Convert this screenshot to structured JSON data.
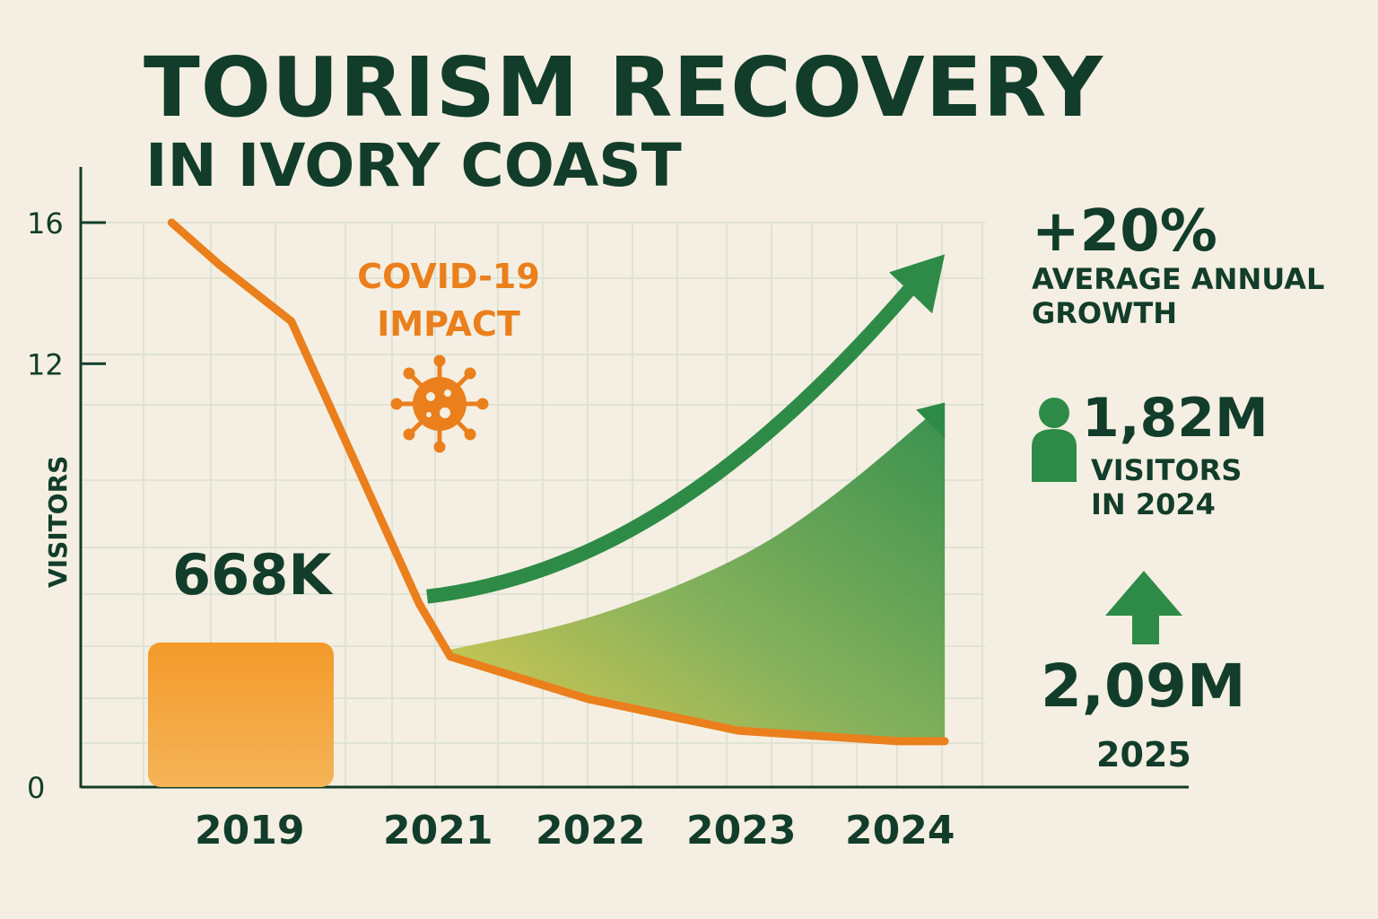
{
  "title": {
    "line1": "TOURISM RECOVERY",
    "line2": "IN IVORY COAST"
  },
  "annotation": {
    "covid_line1": "COVID-19",
    "covid_line2": "IMPACT",
    "bar_label": "668K"
  },
  "stats": {
    "growth_value": "+20%",
    "growth_label_line1": "AVERAGE ANNUAL",
    "growth_label_line2": "GROWTH",
    "visitors_value": "1,82M",
    "visitors_label_line1": "VISITORS",
    "visitors_label_line2": "IN 2024",
    "forecast_value": "2,09M",
    "forecast_year": "2025"
  },
  "colors": {
    "dark_green": "#123d2a",
    "orange": "#ea7f1c",
    "green": "#2e8b47",
    "background": "#f4efe2"
  },
  "chart_data": {
    "type": "line",
    "ylabel": "VISITORS",
    "yticks": [
      "0",
      "12",
      "16"
    ],
    "ylim": [
      0,
      16
    ],
    "x_tick_labels": [
      "2019",
      "2021",
      "2022",
      "2023",
      "2024"
    ],
    "grid": true,
    "series": [
      {
        "kind": "line",
        "color": "#ea7f1c",
        "points": [
          {
            "x": 2018.35,
            "y": 16
          },
          {
            "x": 2018.65,
            "y": 14.8
          },
          {
            "x": 2019.2,
            "y": 13.2
          },
          {
            "x": 2020.8,
            "y": 5.2
          },
          {
            "x": 2021.1,
            "y": 3.7
          },
          {
            "x": 2022.0,
            "y": 2.5
          },
          {
            "x": 2023.0,
            "y": 1.6
          },
          {
            "x": 2024.0,
            "y": 1.3
          },
          {
            "x": 2024.3,
            "y": 1.3
          }
        ]
      },
      {
        "kind": "area",
        "color": "#2e8b47",
        "upper": [
          {
            "x": 2021.1,
            "y": 3.9
          },
          {
            "x": 2022.0,
            "y": 4.7
          },
          {
            "x": 2023.0,
            "y": 6.4
          },
          {
            "x": 2023.6,
            "y": 8.2
          },
          {
            "x": 2024.3,
            "y": 10.9
          }
        ]
      },
      {
        "kind": "arrow",
        "color": "#2e8b47",
        "points": [
          {
            "x": 2020.9,
            "y": 5.4
          },
          {
            "x": 2022.0,
            "y": 6.2
          },
          {
            "x": 2023.0,
            "y": 8.5
          },
          {
            "x": 2024.3,
            "y": 15.0
          }
        ]
      }
    ],
    "bars": [
      {
        "category": "2019",
        "value_label": "668K",
        "y": 4.1,
        "color": "#f2a03a"
      }
    ]
  }
}
